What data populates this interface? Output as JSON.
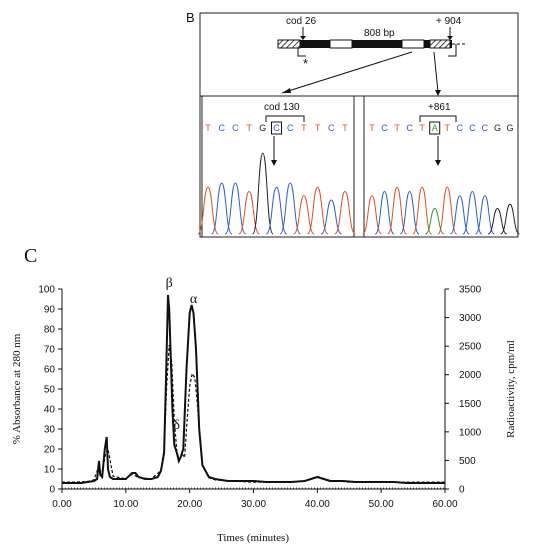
{
  "panel_b": {
    "label": "B",
    "gene_map": {
      "cod26": "cod 26",
      "length": "808 bp",
      "plus904": "+ 904",
      "asterisk": "*"
    },
    "left_trace": {
      "label": "cod 130",
      "bases": [
        "T",
        "C",
        "C",
        "T",
        "G",
        "C",
        "C",
        "T",
        "T",
        "C",
        "T"
      ],
      "boxed_index": 5
    },
    "right_trace": {
      "label": "+861",
      "bases": [
        "T",
        "C",
        "T",
        "C",
        "T",
        "A",
        "T",
        "C",
        "C",
        "C",
        "G",
        "G"
      ],
      "boxed_index": 5
    },
    "base_colors": {
      "A": "#2e9a3a",
      "C": "#2f5fc4",
      "G": "#222222",
      "T": "#d9532b"
    }
  },
  "panel_c": {
    "label": "C",
    "chart_data": {
      "type": "line",
      "xlabel": "Times (minutes)",
      "ylabel_left": "% Absorbance at 280 nm",
      "ylabel_right": "Radioactivity, cpm/ml",
      "xlim": [
        0,
        60
      ],
      "ylim_left": [
        0,
        100
      ],
      "ylim_right": [
        0,
        3500
      ],
      "x_ticks": [
        "0.00",
        "10.00",
        "20.00",
        "30.00",
        "40.00",
        "50.00",
        "60.00"
      ],
      "y_left_ticks": [
        "0",
        "10",
        "20",
        "30",
        "40",
        "50",
        "60",
        "70",
        "80",
        "90",
        "100"
      ],
      "y_right_ticks": [
        "0",
        "500",
        "1000",
        "1500",
        "2000",
        "2500",
        "3000",
        "3500"
      ],
      "peak_labels": [
        {
          "text": "β",
          "x": 16.8,
          "y": 98
        },
        {
          "text": "α",
          "x": 20.6,
          "y": 90
        },
        {
          "text": "δ",
          "x": 18.6,
          "y": 27
        }
      ],
      "series": [
        {
          "style": "solid",
          "axis": "left",
          "x": [
            0,
            1,
            2,
            3,
            4,
            5,
            5.5,
            5.8,
            6.0,
            6.3,
            6.7,
            7.0,
            7.2,
            7.5,
            8,
            9,
            10,
            11,
            11.5,
            12,
            13,
            14,
            15,
            15.5,
            16,
            16.3,
            16.6,
            16.8,
            17.0,
            17.3,
            17.6,
            18,
            18.3,
            18.6,
            19,
            19.5,
            20,
            20.3,
            20.6,
            21,
            21.5,
            22,
            23,
            24,
            26,
            28,
            30,
            32,
            34,
            36,
            38,
            39,
            40,
            41,
            42,
            44,
            46,
            48,
            50,
            52,
            54,
            56,
            58,
            60
          ],
          "y": [
            3,
            3,
            3,
            3,
            3.5,
            4,
            5,
            14,
            7,
            6,
            20,
            26,
            10,
            6,
            5,
            5,
            5,
            8,
            8,
            6,
            5,
            5,
            6,
            9,
            18,
            55,
            97,
            90,
            70,
            40,
            22,
            18,
            14,
            16,
            20,
            60,
            88,
            92,
            88,
            70,
            30,
            12,
            6,
            5,
            4,
            4,
            4,
            3.5,
            3.5,
            3.5,
            4,
            5,
            6,
            5,
            4,
            4,
            3.5,
            3.5,
            3.5,
            3.5,
            3,
            3,
            3,
            3
          ]
        },
        {
          "style": "dashed",
          "axis": "right",
          "x": [
            0,
            2,
            4,
            5,
            5.8,
            6.2,
            6.8,
            7.2,
            8,
            10,
            11,
            12,
            14,
            15.5,
            16,
            16.4,
            16.8,
            17.2,
            17.6,
            18,
            18.4,
            18.8,
            19.2,
            19.6,
            20,
            20.4,
            20.8,
            21.2,
            21.6,
            22,
            23,
            24,
            26,
            30,
            35,
            38,
            40,
            42,
            45,
            50,
            55,
            60
          ],
          "y": [
            120,
            120,
            130,
            160,
            400,
            240,
            600,
            700,
            220,
            180,
            260,
            200,
            180,
            320,
            700,
            1800,
            2520,
            2200,
            1200,
            650,
            500,
            620,
            550,
            1200,
            1800,
            2020,
            1950,
            1500,
            900,
            400,
            200,
            160,
            140,
            120,
            120,
            140,
            220,
            150,
            120,
            120,
            120,
            120
          ]
        },
        {
          "style": "dotted",
          "axis": "left",
          "x": [
            0,
            60
          ],
          "y": [
            0.5,
            0.5
          ]
        }
      ]
    }
  }
}
